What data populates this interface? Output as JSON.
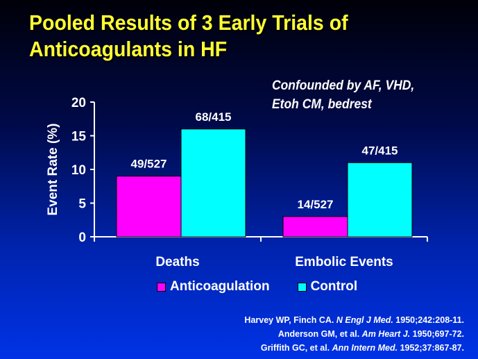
{
  "slide": {
    "title_line1": "Pooled Results of 3 Early Trials of",
    "title_line2": "Anticoagulants in HF",
    "note_line1": "Confounded by AF, VHD,",
    "note_line2": "Etoh CM, bedrest",
    "colors": {
      "title": "#ffff33",
      "text": "#ffffff",
      "background_top": "#000008",
      "background_bottom": "#0033e6"
    }
  },
  "chart_data": {
    "type": "bar",
    "ylabel": "Event Rate (%)",
    "xlabel": "",
    "ylim": [
      0,
      20
    ],
    "yticks": [
      0,
      5,
      10,
      15,
      20
    ],
    "grid": false,
    "legend_position": "bottom",
    "categories": [
      "Deaths",
      "Embolic Events"
    ],
    "series": [
      {
        "name": "Anticoagulation",
        "color": "#ff00ff",
        "values": [
          9,
          3
        ],
        "labels": [
          "49/527",
          "14/527"
        ]
      },
      {
        "name": "Control",
        "color": "#00ffff",
        "values": [
          16,
          11
        ],
        "labels": [
          "68/415",
          "47/415"
        ]
      }
    ]
  },
  "references": [
    {
      "prefix": "Harvey WP, Finch CA. ",
      "journal": "N Engl J Med.",
      "suffix": " 1950;242:208-11."
    },
    {
      "prefix": "Anderson GM, et al. ",
      "journal": "Am Heart J.",
      "suffix": " 1950;697-72."
    },
    {
      "prefix": "Griffith GC, et al. ",
      "journal": "Ann Intern Med.",
      "suffix": " 1952;37:867-87."
    }
  ]
}
